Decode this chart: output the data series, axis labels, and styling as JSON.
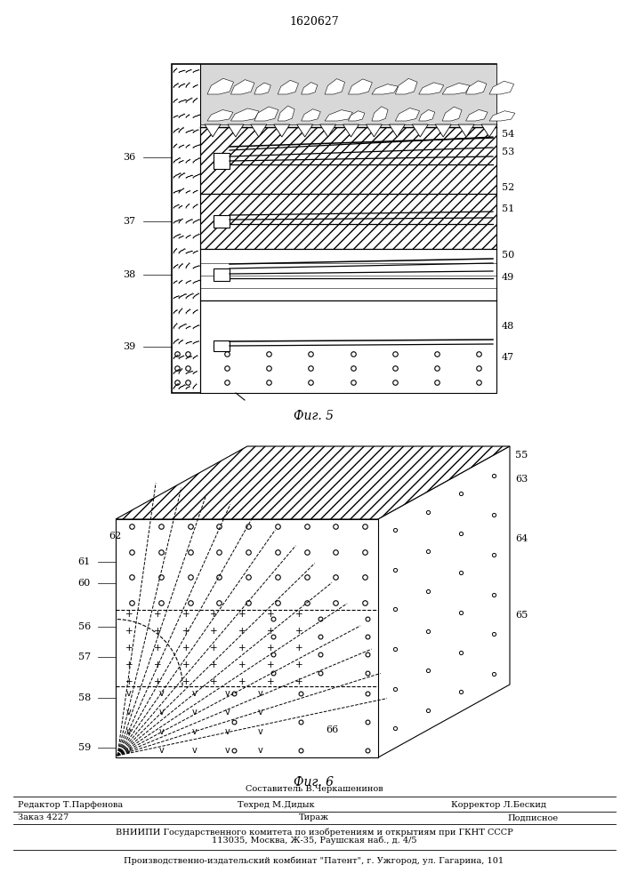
{
  "patent_number": "1620627",
  "fig5_caption": "Фиг. 5",
  "fig6_caption": "Фиг. 6",
  "background_color": "#ffffff",
  "footer": {
    "composer": "Составитель В.Черкашенинов",
    "editor": "Редактор Т.Парфенова",
    "techred": "Техред М.Дидык",
    "corrector": "Корректор Л.Бескид",
    "order": "Заказ 4227",
    "tirazh": "Тираж",
    "podpisnoe": "Подписное",
    "vniip": "ВНИИПИ Государственного комитета по изобретениям и открытиям при ГКНТ СССР",
    "address1": "113035, Москва, Ж-35, Раушская наб., д. 4/5",
    "plant": "Производственно-издательский комбинат \"Патент\", г. Ужгород, ул. Гагарина, 101"
  }
}
